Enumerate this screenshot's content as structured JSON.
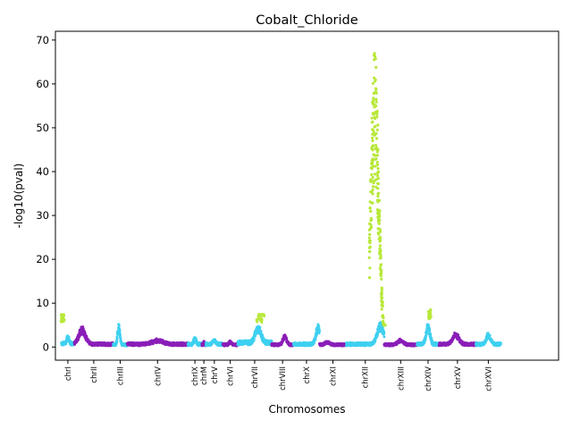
{
  "chart_data": {
    "type": "scatter",
    "title": "Cobalt_Chloride",
    "xlabel": "Chromosomes",
    "ylabel": "-log10(pval)",
    "ylim": [
      -3,
      72
    ],
    "yticks": [
      0,
      10,
      20,
      30,
      40,
      50,
      60,
      70
    ],
    "grid": false,
    "legend": "none",
    "colors": {
      "odd": "#3fd0f0",
      "even": "#8a1fb8",
      "significant": "#b8e83a",
      "axis": "#000000"
    },
    "chromosomes": [
      {
        "name": "chrI",
        "start": 1,
        "end": 14,
        "color": "#3fd0f0",
        "base": 1.2,
        "peak": 3.0,
        "peak_at": 0.5
      },
      {
        "name": "chrII",
        "start": 14,
        "end": 53,
        "color": "#8a1fb8",
        "base": 1.0,
        "peak": 5.0,
        "peak_at": 0.2
      },
      {
        "name": "chrIII",
        "start": 53,
        "end": 67,
        "color": "#3fd0f0",
        "base": 0.8,
        "peak": 5.5,
        "peak_at": 0.4
      },
      {
        "name": "chrIV",
        "start": 67,
        "end": 128,
        "color": "#8a1fb8",
        "base": 1.0,
        "peak": 2.0,
        "peak_at": 0.5
      },
      {
        "name": "chrIX",
        "start": 128,
        "end": 142,
        "color": "#3fd0f0",
        "base": 1.0,
        "peak": 2.5,
        "peak_at": 0.5
      },
      {
        "name": "chrM",
        "start": 142,
        "end": 146,
        "color": "#8a1fb8",
        "base": 0.8,
        "peak": 1.5,
        "peak_at": 0.5
      },
      {
        "name": "chrV",
        "start": 146,
        "end": 163,
        "color": "#3fd0f0",
        "base": 1.0,
        "peak": 2.0,
        "peak_at": 0.5
      },
      {
        "name": "chrVI",
        "start": 163,
        "end": 178,
        "color": "#8a1fb8",
        "base": 0.8,
        "peak": 1.5,
        "peak_at": 0.5
      },
      {
        "name": "chrVII",
        "start": 178,
        "end": 212,
        "color": "#3fd0f0",
        "base": 1.5,
        "peak": 5.5,
        "peak_at": 0.6
      },
      {
        "name": "chrVIII",
        "start": 212,
        "end": 234,
        "color": "#8a1fb8",
        "base": 0.8,
        "peak": 3.0,
        "peak_at": 0.6
      },
      {
        "name": "chrX",
        "start": 234,
        "end": 260,
        "color": "#3fd0f0",
        "base": 1.0,
        "peak": 5.5,
        "peak_at": 0.95
      },
      {
        "name": "chrXI",
        "start": 260,
        "end": 287,
        "color": "#8a1fb8",
        "base": 0.8,
        "peak": 1.5,
        "peak_at": 0.3
      },
      {
        "name": "chrXII",
        "start": 287,
        "end": 325,
        "color": "#3fd0f0",
        "base": 1.0,
        "peak": 6.0,
        "peak_at": 0.9
      },
      {
        "name": "chrXIII",
        "start": 325,
        "end": 358,
        "color": "#8a1fb8",
        "base": 0.8,
        "peak": 2.0,
        "peak_at": 0.5
      },
      {
        "name": "chrXIV",
        "start": 358,
        "end": 380,
        "color": "#3fd0f0",
        "base": 1.0,
        "peak": 6.0,
        "peak_at": 0.5
      },
      {
        "name": "chrXV",
        "start": 380,
        "end": 417,
        "color": "#8a1fb8",
        "base": 1.0,
        "peak": 3.5,
        "peak_at": 0.45
      },
      {
        "name": "chrXVI",
        "start": 417,
        "end": 442,
        "color": "#3fd0f0",
        "base": 1.0,
        "peak": 3.5,
        "peak_at": 0.5
      }
    ],
    "tick_positions": [
      5,
      28,
      58,
      89,
      132,
      144,
      155,
      171,
      198,
      223,
      252,
      289,
      340,
      376,
      399,
      436,
      484
    ],
    "xlim": [
      -5,
      500
    ],
    "signal_peaks": [
      {
        "x_from": 310,
        "x_to": 326,
        "top": 68,
        "color": "#b8e83a",
        "note": "chrXII strong peak"
      },
      {
        "x_from": 0,
        "x_to": 4,
        "top": 7.5,
        "color": "#b8e83a",
        "note": "chrI peak"
      },
      {
        "x_from": 197,
        "x_to": 205,
        "top": 7.5,
        "color": "#b8e83a",
        "note": "chrVII peak"
      },
      {
        "x_from": 369,
        "x_to": 372,
        "top": 8.5,
        "color": "#b8e83a",
        "note": "chrXIV peak"
      }
    ]
  }
}
